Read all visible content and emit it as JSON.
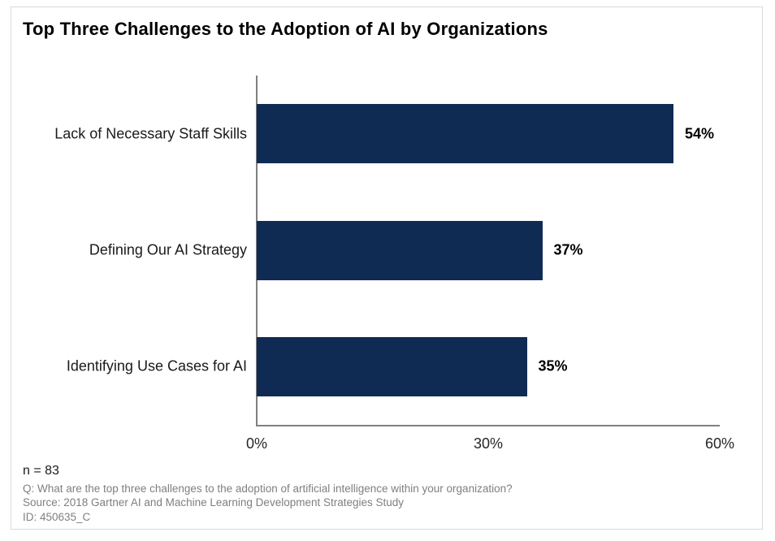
{
  "card": {
    "title": "Top Three Challenges to the Adoption of AI by Organizations"
  },
  "chart_data": {
    "type": "bar",
    "orientation": "horizontal",
    "title": "Top Three Challenges to the Adoption of AI by Organizations",
    "categories": [
      "Lack of Necessary Staff Skills",
      "Defining Our AI Strategy",
      "Identifying Use Cases for AI"
    ],
    "values": [
      54,
      37,
      35
    ],
    "value_labels": [
      "54%",
      "37%",
      "35%"
    ],
    "xlabel": "",
    "ylabel": "",
    "xlim": [
      0,
      60
    ],
    "x_ticks": [
      {
        "value": 0,
        "label": "0%"
      },
      {
        "value": 30,
        "label": "30%"
      },
      {
        "value": 60,
        "label": "60%"
      }
    ],
    "grid": false,
    "legend": false,
    "bar_color": "#0F2B54",
    "axis_color": "#808080"
  },
  "footer": {
    "n_label": "n = 83",
    "question": "Q: What are the top three challenges to the adoption of artificial intelligence within your organization?",
    "source": "Source: 2018 Gartner AI and Machine Learning Development Strategies Study",
    "id": "ID: 450635_C"
  }
}
